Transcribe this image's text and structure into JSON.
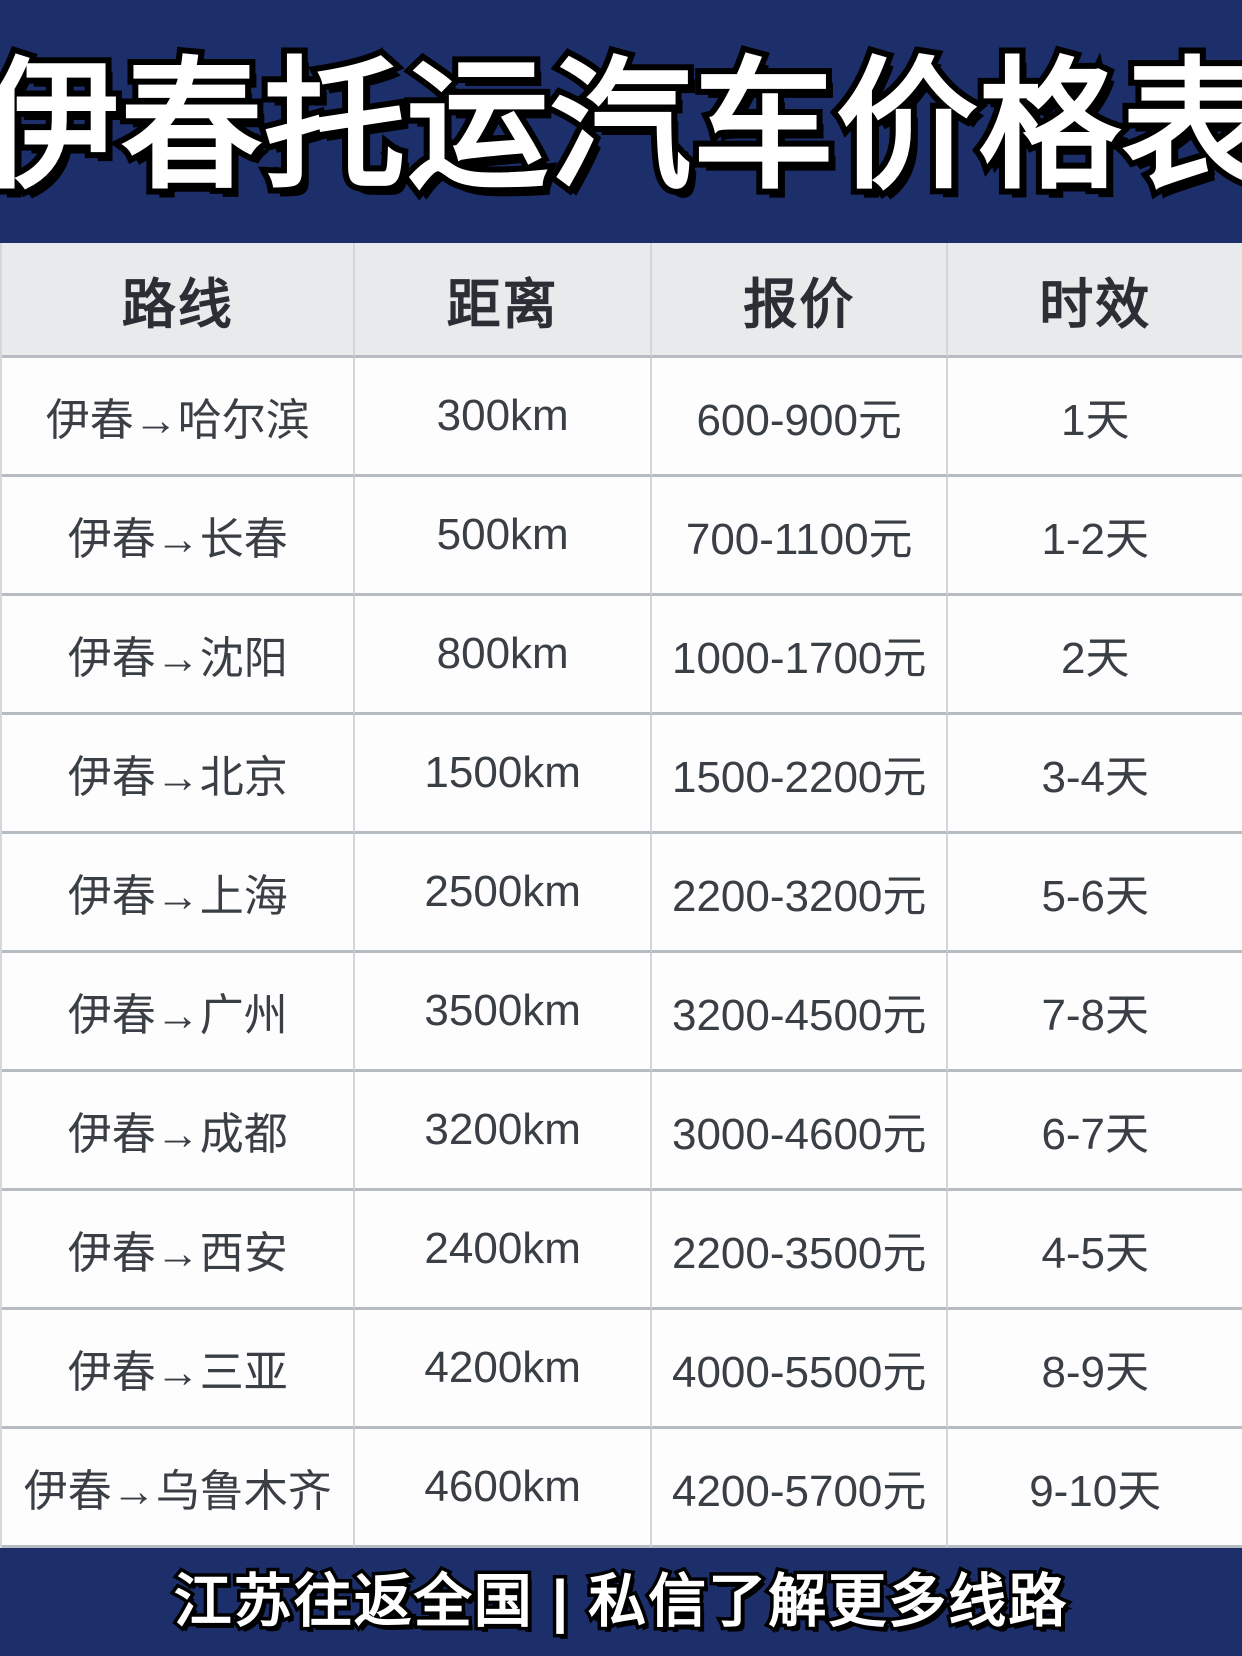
{
  "title": "伊春托运汽车价格表",
  "table": {
    "headers": [
      "路线",
      "距离",
      "报价",
      "时效"
    ],
    "rows": [
      {
        "route": "伊春→哈尔滨",
        "distance": "300km",
        "price": "600-900元",
        "duration": "1天"
      },
      {
        "route": "伊春→长春",
        "distance": "500km",
        "price": "700-1100元",
        "duration": "1-2天"
      },
      {
        "route": "伊春→沈阳",
        "distance": "800km",
        "price": "1000-1700元",
        "duration": "2天"
      },
      {
        "route": "伊春→北京",
        "distance": "1500km",
        "price": "1500-2200元",
        "duration": "3-4天"
      },
      {
        "route": "伊春→上海",
        "distance": "2500km",
        "price": "2200-3200元",
        "duration": "5-6天"
      },
      {
        "route": "伊春→广州",
        "distance": "3500km",
        "price": "3200-4500元",
        "duration": "7-8天"
      },
      {
        "route": "伊春→成都",
        "distance": "3200km",
        "price": "3000-4600元",
        "duration": "6-7天"
      },
      {
        "route": "伊春→西安",
        "distance": "2400km",
        "price": "2200-3500元",
        "duration": "4-5天"
      },
      {
        "route": "伊春→三亚",
        "distance": "4200km",
        "price": "4000-5500元",
        "duration": "8-9天"
      },
      {
        "route": "伊春→乌鲁木齐",
        "distance": "4600km",
        "price": "4200-5700元",
        "duration": "9-10天"
      }
    ]
  },
  "footer": {
    "text": "江苏往返全国 | 私信了解更多线路"
  },
  "colors": {
    "banner_navy": "#1c2f6b",
    "header_bg": "#e9eaec",
    "row_bg": "#fdfdfe",
    "border_vertical": "#d2d5d9",
    "border_horizontal": "#b7bbc2",
    "title_text": "#ffffff",
    "title_outline": "#000000",
    "cell_text": "#3a3e45"
  }
}
